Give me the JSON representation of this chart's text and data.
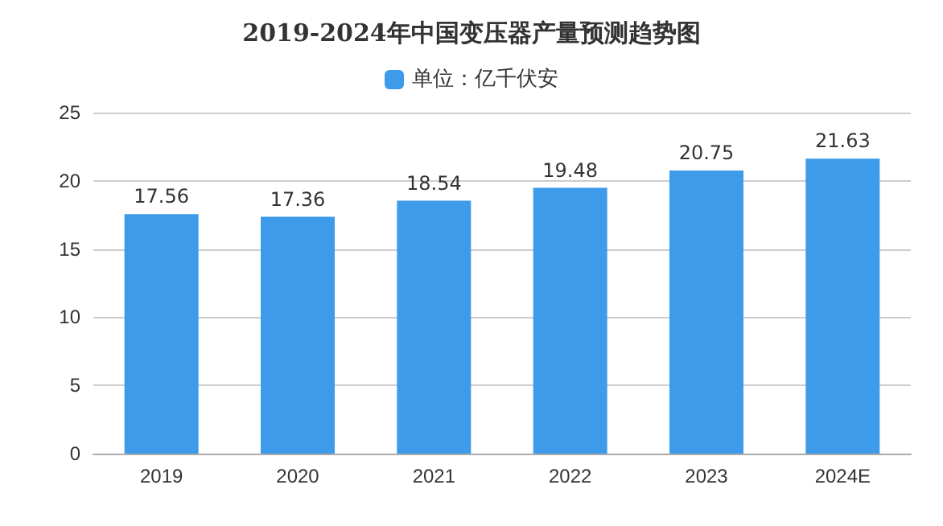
{
  "chart_data": {
    "type": "bar",
    "title": "2019-2024年中国变压器产量预测趋势图",
    "categories": [
      "2019",
      "2020",
      "2021",
      "2022",
      "2023",
      "2024E"
    ],
    "series": [
      {
        "name": "单位：亿千伏安",
        "color": "#3d9be9",
        "values": [
          17.56,
          17.36,
          18.54,
          19.48,
          20.75,
          21.63
        ]
      }
    ],
    "ylim": [
      0,
      25
    ],
    "yticks": [
      0,
      5,
      10,
      15,
      20,
      25
    ],
    "grid": "y",
    "legend": "top",
    "data_labels": true
  }
}
